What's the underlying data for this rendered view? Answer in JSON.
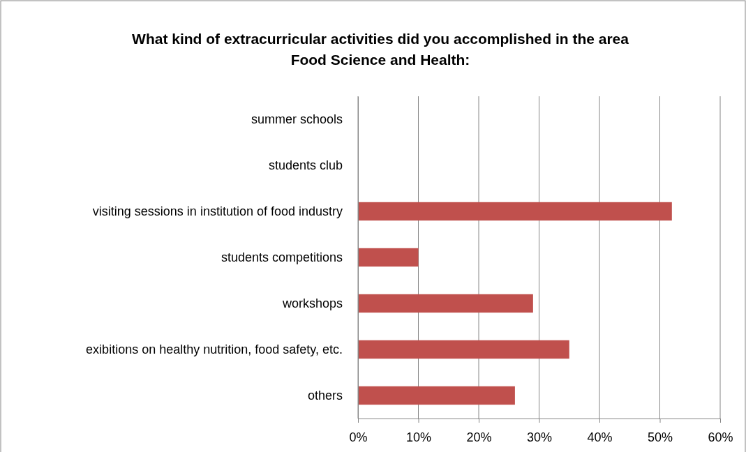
{
  "chart_data": {
    "type": "bar",
    "orientation": "horizontal",
    "title": "What kind of extracurricular activities did you accomplished in the area Food Science and Health:",
    "categories": [
      "summer schools",
      "students club",
      "visiting sessions in institution of food industry",
      "students competitions",
      "workshops",
      "exibitions on healthy nutrition, food safety, etc.",
      "others"
    ],
    "values": [
      0,
      0,
      52,
      10,
      29,
      35,
      26
    ],
    "color": "#c0504d",
    "xlim": [
      0,
      60
    ],
    "xticks": [
      {
        "value": 0,
        "label": "0%"
      },
      {
        "value": 10,
        "label": "10%"
      },
      {
        "value": 20,
        "label": "20%"
      },
      {
        "value": 30,
        "label": "30%"
      },
      {
        "value": 40,
        "label": "40%"
      },
      {
        "value": 50,
        "label": "50%"
      },
      {
        "value": 60,
        "label": "60%"
      }
    ],
    "grid": "x"
  }
}
